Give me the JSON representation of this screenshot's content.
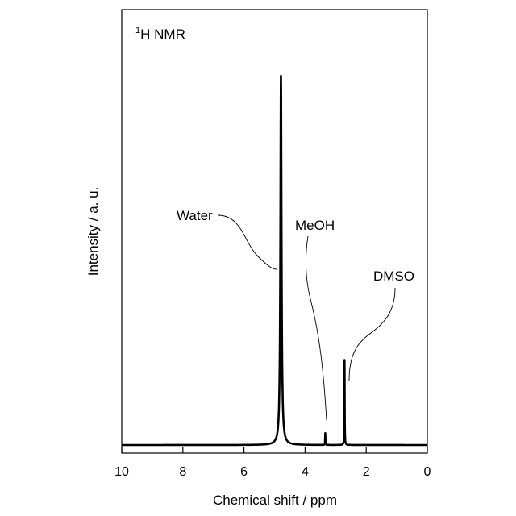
{
  "chart_data": {
    "type": "line",
    "title_sup": "1",
    "title_main": "H NMR",
    "xlabel": "Chemical shift / ppm",
    "ylabel": "Intensity / a. u.",
    "xlim": [
      10,
      0
    ],
    "x_reversed": true,
    "ylim": [
      0,
      1.1
    ],
    "xticks": [
      "10",
      "8",
      "6",
      "4",
      "2",
      "0"
    ],
    "xtick_values": [
      10,
      8,
      6,
      4,
      2,
      0
    ],
    "grid": false,
    "series": [
      {
        "peaks": [
          {
            "center": 4.79,
            "height": 1.0,
            "width": 0.022
          },
          {
            "center": 3.34,
            "height": 0.032,
            "width": 0.006
          },
          {
            "center": 2.71,
            "height": 0.23,
            "width": 0.006
          }
        ],
        "baseline": 0.0
      }
    ],
    "annotations": [
      {
        "text": "Water",
        "peak_x": 4.79
      },
      {
        "text": "MeOH",
        "peak_x": 3.34
      },
      {
        "text": "DMSO",
        "peak_x": 2.71
      }
    ],
    "line_color": "#000000"
  }
}
